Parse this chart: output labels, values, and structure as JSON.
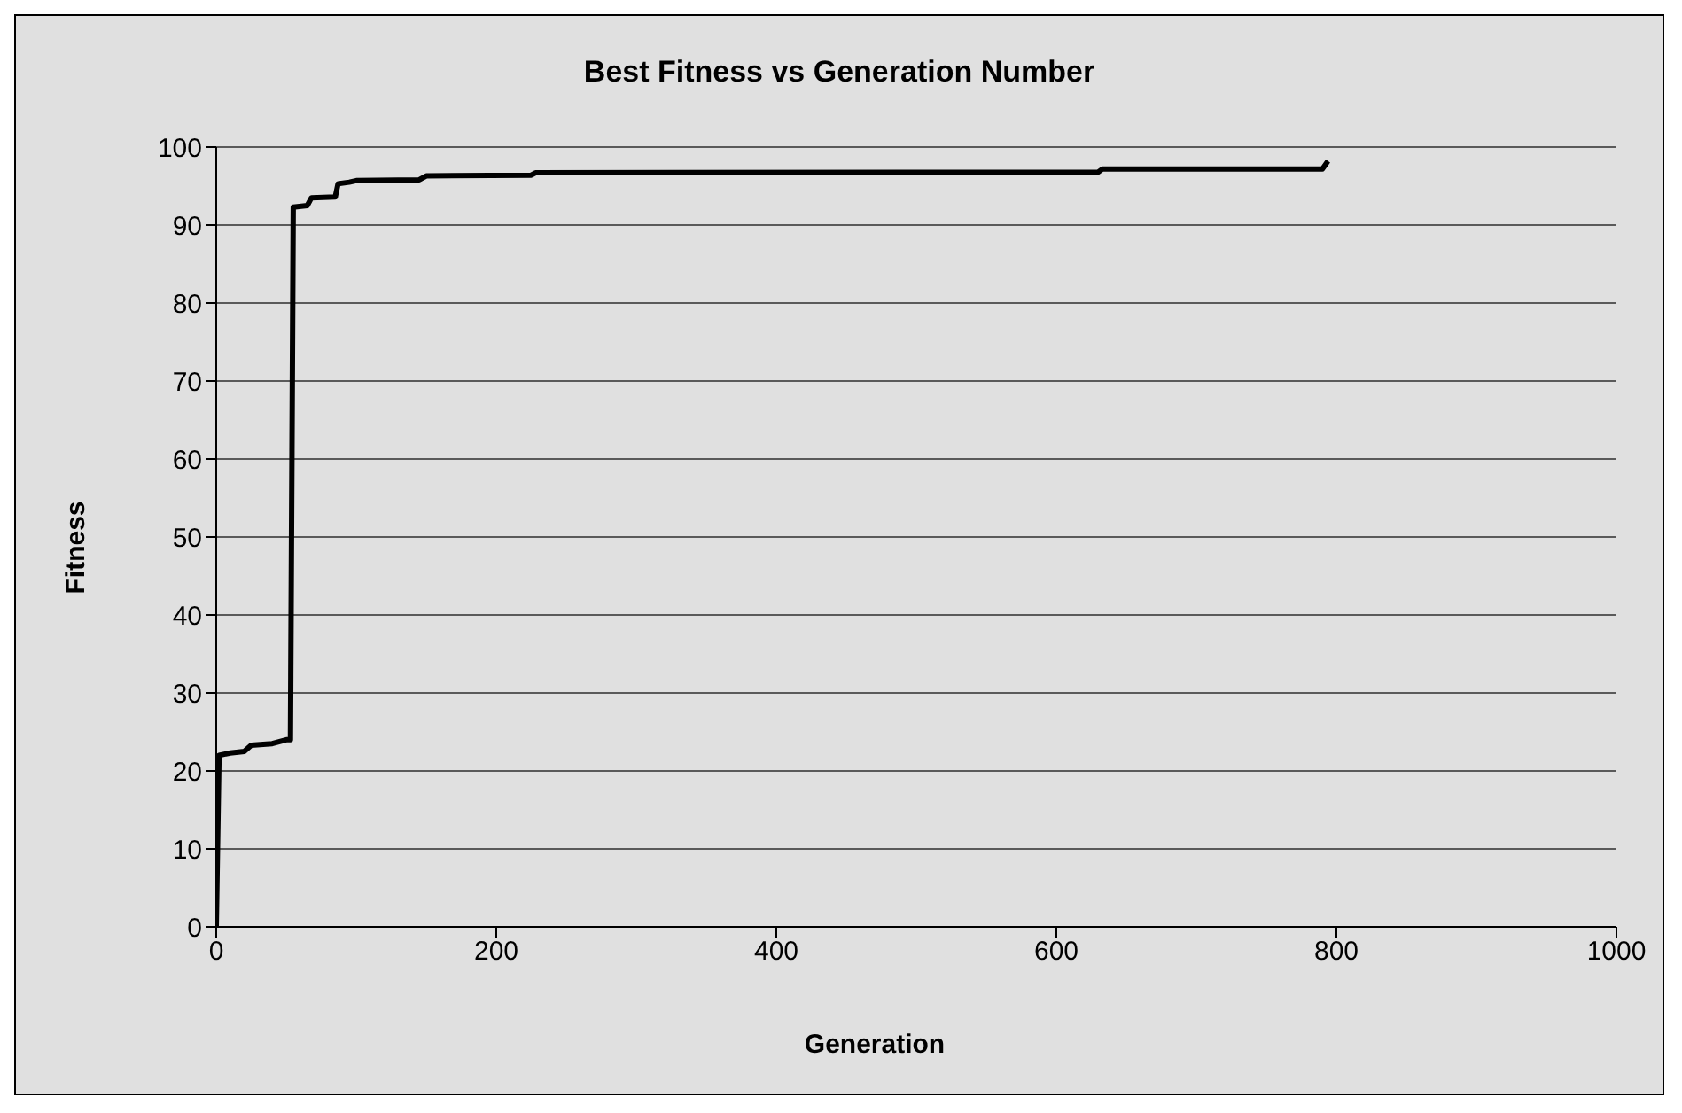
{
  "chart_data": {
    "type": "line",
    "title": "Best Fitness vs Generation Number",
    "xlabel": "Generation",
    "ylabel": "Fitness",
    "series": [
      {
        "color": "#000000",
        "x": [
          0,
          2,
          10,
          20,
          25,
          40,
          50,
          53,
          55,
          65,
          68,
          85,
          87,
          95,
          100,
          145,
          150,
          225,
          228,
          630,
          633,
          790,
          794
        ],
        "values": [
          0,
          22,
          22.3,
          22.5,
          23.3,
          23.5,
          24,
          24,
          92.3,
          92.5,
          93.5,
          93.6,
          95.3,
          95.5,
          95.7,
          95.8,
          96.3,
          96.4,
          96.7,
          96.8,
          97.2,
          97.2,
          98.2
        ]
      }
    ],
    "xlim": [
      0,
      1000
    ],
    "xticks": [
      0,
      200,
      400,
      600,
      800,
      1000
    ],
    "ylim": [
      0,
      100
    ],
    "yticks": [
      0,
      10,
      20,
      30,
      40,
      50,
      60,
      70,
      80,
      90,
      100
    ],
    "grid": "y",
    "legend": false,
    "marker": "none",
    "line_style": "solid"
  }
}
